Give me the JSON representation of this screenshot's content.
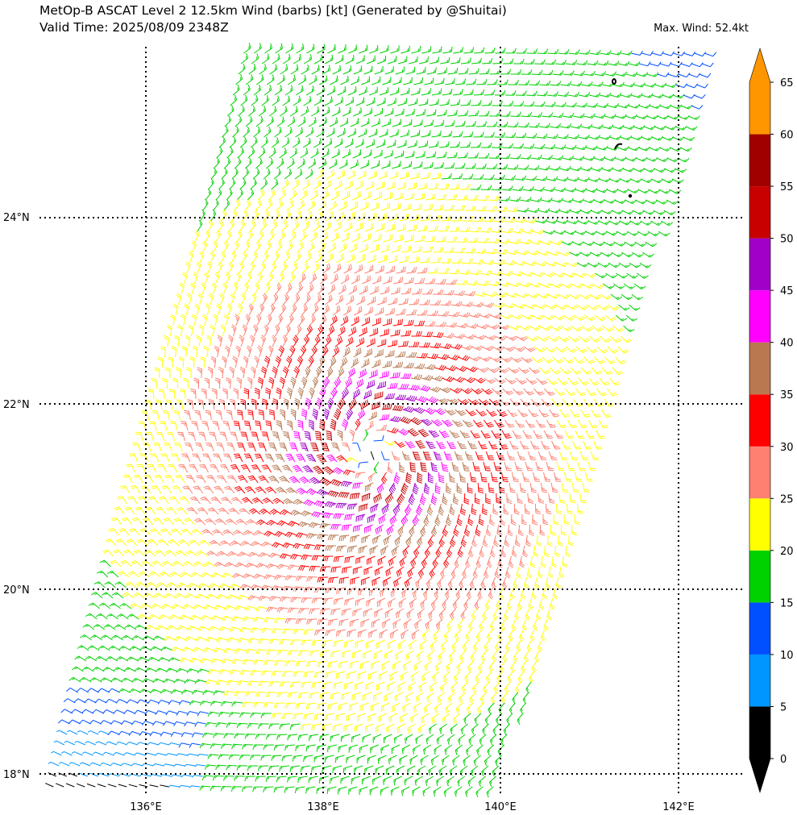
{
  "title_line1": "MetOp-B ASCAT Level 2 12.5km Wind (barbs) [kt] (Generated by @Shuitai)",
  "title_line2": "Valid Time: 2025/08/09 2348Z",
  "max_wind_text": "Max. Wind: 52.4kt",
  "lat_labels": [
    "24°N",
    "22°N",
    "20°N",
    "18°N"
  ],
  "lon_labels": [
    "136°E",
    "138°E",
    "140°E",
    "142°E"
  ],
  "colorbar": {
    "levels": [
      "0",
      "5",
      "10",
      "15",
      "20",
      "25",
      "30",
      "35",
      "40",
      "45",
      "50",
      "55",
      "60",
      "65"
    ],
    "colors": [
      "#000000",
      "#0096ff",
      "#0050ff",
      "#00d200",
      "#ffff00",
      "#ff8070",
      "#ff0000",
      "#b97850",
      "#ff00ff",
      "#a000c8",
      "#c80000",
      "#a00000",
      "#ff9600"
    ],
    "extend": "both"
  },
  "wind_field": {
    "units": "kt",
    "center": {
      "lon": 138.6,
      "lat": 21.5
    },
    "max_speed": 52.4
  }
}
